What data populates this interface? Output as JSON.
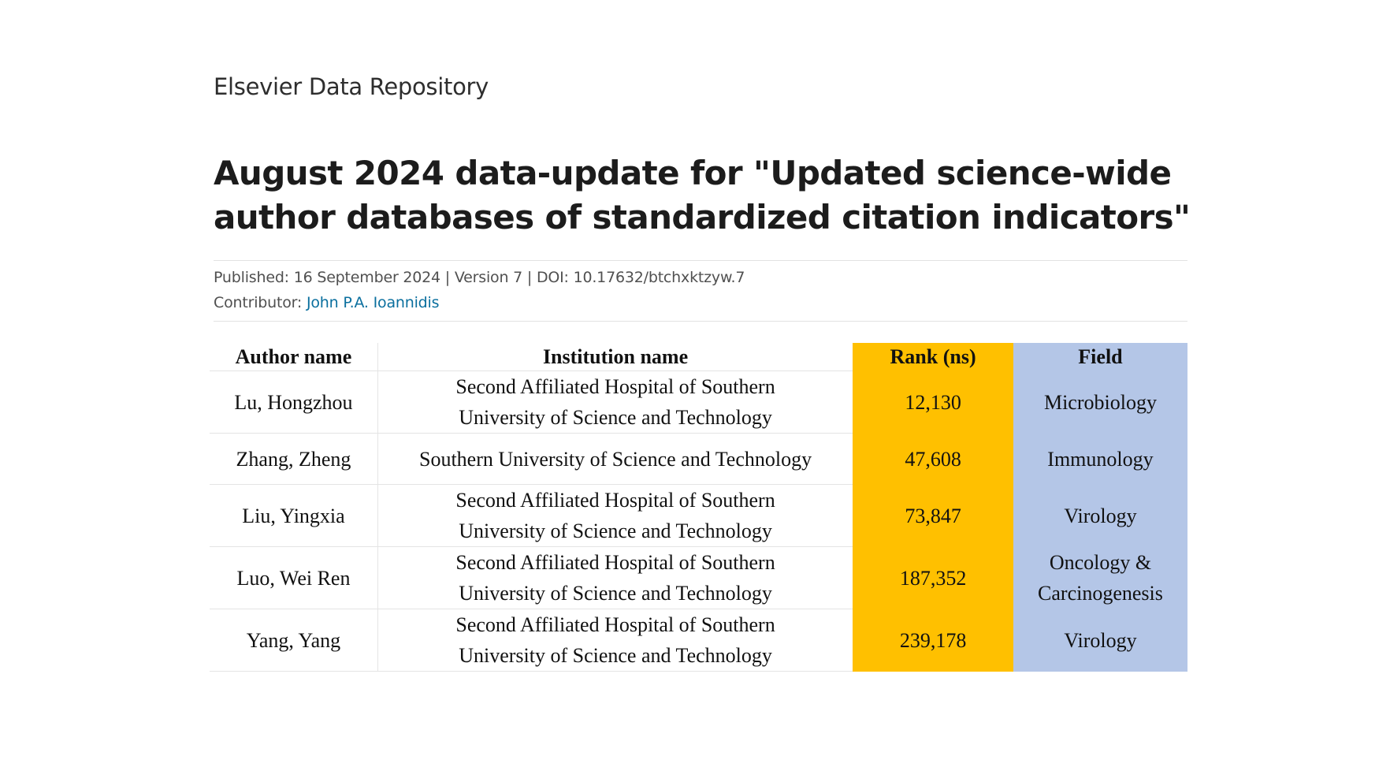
{
  "header": {
    "repository_name": "Elsevier Data Repository",
    "title": "August 2024 data-update for \"Updated science-wide author databases of standardized citation indicators\""
  },
  "meta": {
    "published": "Published: 16 September 2024",
    "separator": "|",
    "version": "Version 7",
    "doi": "DOI: 10.17632/btchxktzyw.7",
    "contributor_label": "Contributor:",
    "contributor_name": "John P.A. Ioannidis"
  },
  "table": {
    "columns": [
      "Author name",
      "Institution name",
      "Rank (ns)",
      "Field"
    ],
    "rows": [
      {
        "author": "Lu, Hongzhou",
        "institution": [
          "Second Affiliated Hospital of Southern",
          "University of Science and Technology"
        ],
        "rank": "12,130",
        "field": [
          "Microbiology"
        ]
      },
      {
        "author": "Zhang, Zheng",
        "institution": [
          "Southern University of Science and Technology"
        ],
        "rank": "47,608",
        "field": [
          "Immunology"
        ]
      },
      {
        "author": "Liu, Yingxia",
        "institution": [
          "Second Affiliated Hospital of Southern",
          "University of Science and Technology"
        ],
        "rank": "73,847",
        "field": [
          "Virology"
        ]
      },
      {
        "author": "Luo, Wei Ren",
        "institution": [
          "Second Affiliated Hospital of Southern",
          "University of Science and Technology"
        ],
        "rank": "187,352",
        "field": [
          "Oncology &",
          "Carcinogenesis"
        ]
      },
      {
        "author": "Yang, Yang",
        "institution": [
          "Second Affiliated Hospital of Southern",
          "University of Science and Technology"
        ],
        "rank": "239,178",
        "field": [
          "Virology"
        ]
      }
    ]
  },
  "colors": {
    "rank_highlight": "#ffc000",
    "field_highlight": "#b4c6e7",
    "link": "#0a6f9e"
  }
}
